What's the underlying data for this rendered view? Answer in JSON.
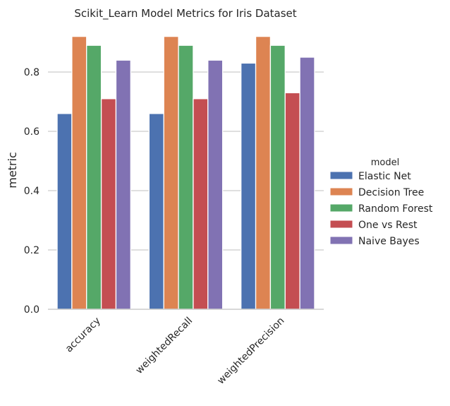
{
  "chart_data": {
    "type": "bar",
    "title": "Scikit_Learn Model Metrics for Iris Dataset",
    "xlabel": "",
    "ylabel": "metric",
    "ylim": [
      0,
      0.95
    ],
    "yticks": [
      0.0,
      0.2,
      0.4,
      0.6,
      0.8
    ],
    "ytick_labels": [
      "0.0",
      "0.2",
      "0.4",
      "0.6",
      "0.8"
    ],
    "grid": "y",
    "categories": [
      "accuracy",
      "weightedRecall",
      "weightedPrecision"
    ],
    "legend": {
      "title": "model",
      "placement": "right"
    },
    "series": [
      {
        "name": "Elastic Net",
        "color": "#4c72b0",
        "values": [
          0.66,
          0.66,
          0.83
        ]
      },
      {
        "name": "Decision Tree",
        "color": "#dd8452",
        "values": [
          0.92,
          0.92,
          0.92
        ]
      },
      {
        "name": "Random Forest",
        "color": "#55a868",
        "values": [
          0.89,
          0.89,
          0.89
        ]
      },
      {
        "name": "One vs Rest",
        "color": "#c44e52",
        "values": [
          0.71,
          0.71,
          0.73
        ]
      },
      {
        "name": "Naive Bayes",
        "color": "#8172b3",
        "values": [
          0.84,
          0.84,
          0.85
        ]
      }
    ]
  }
}
